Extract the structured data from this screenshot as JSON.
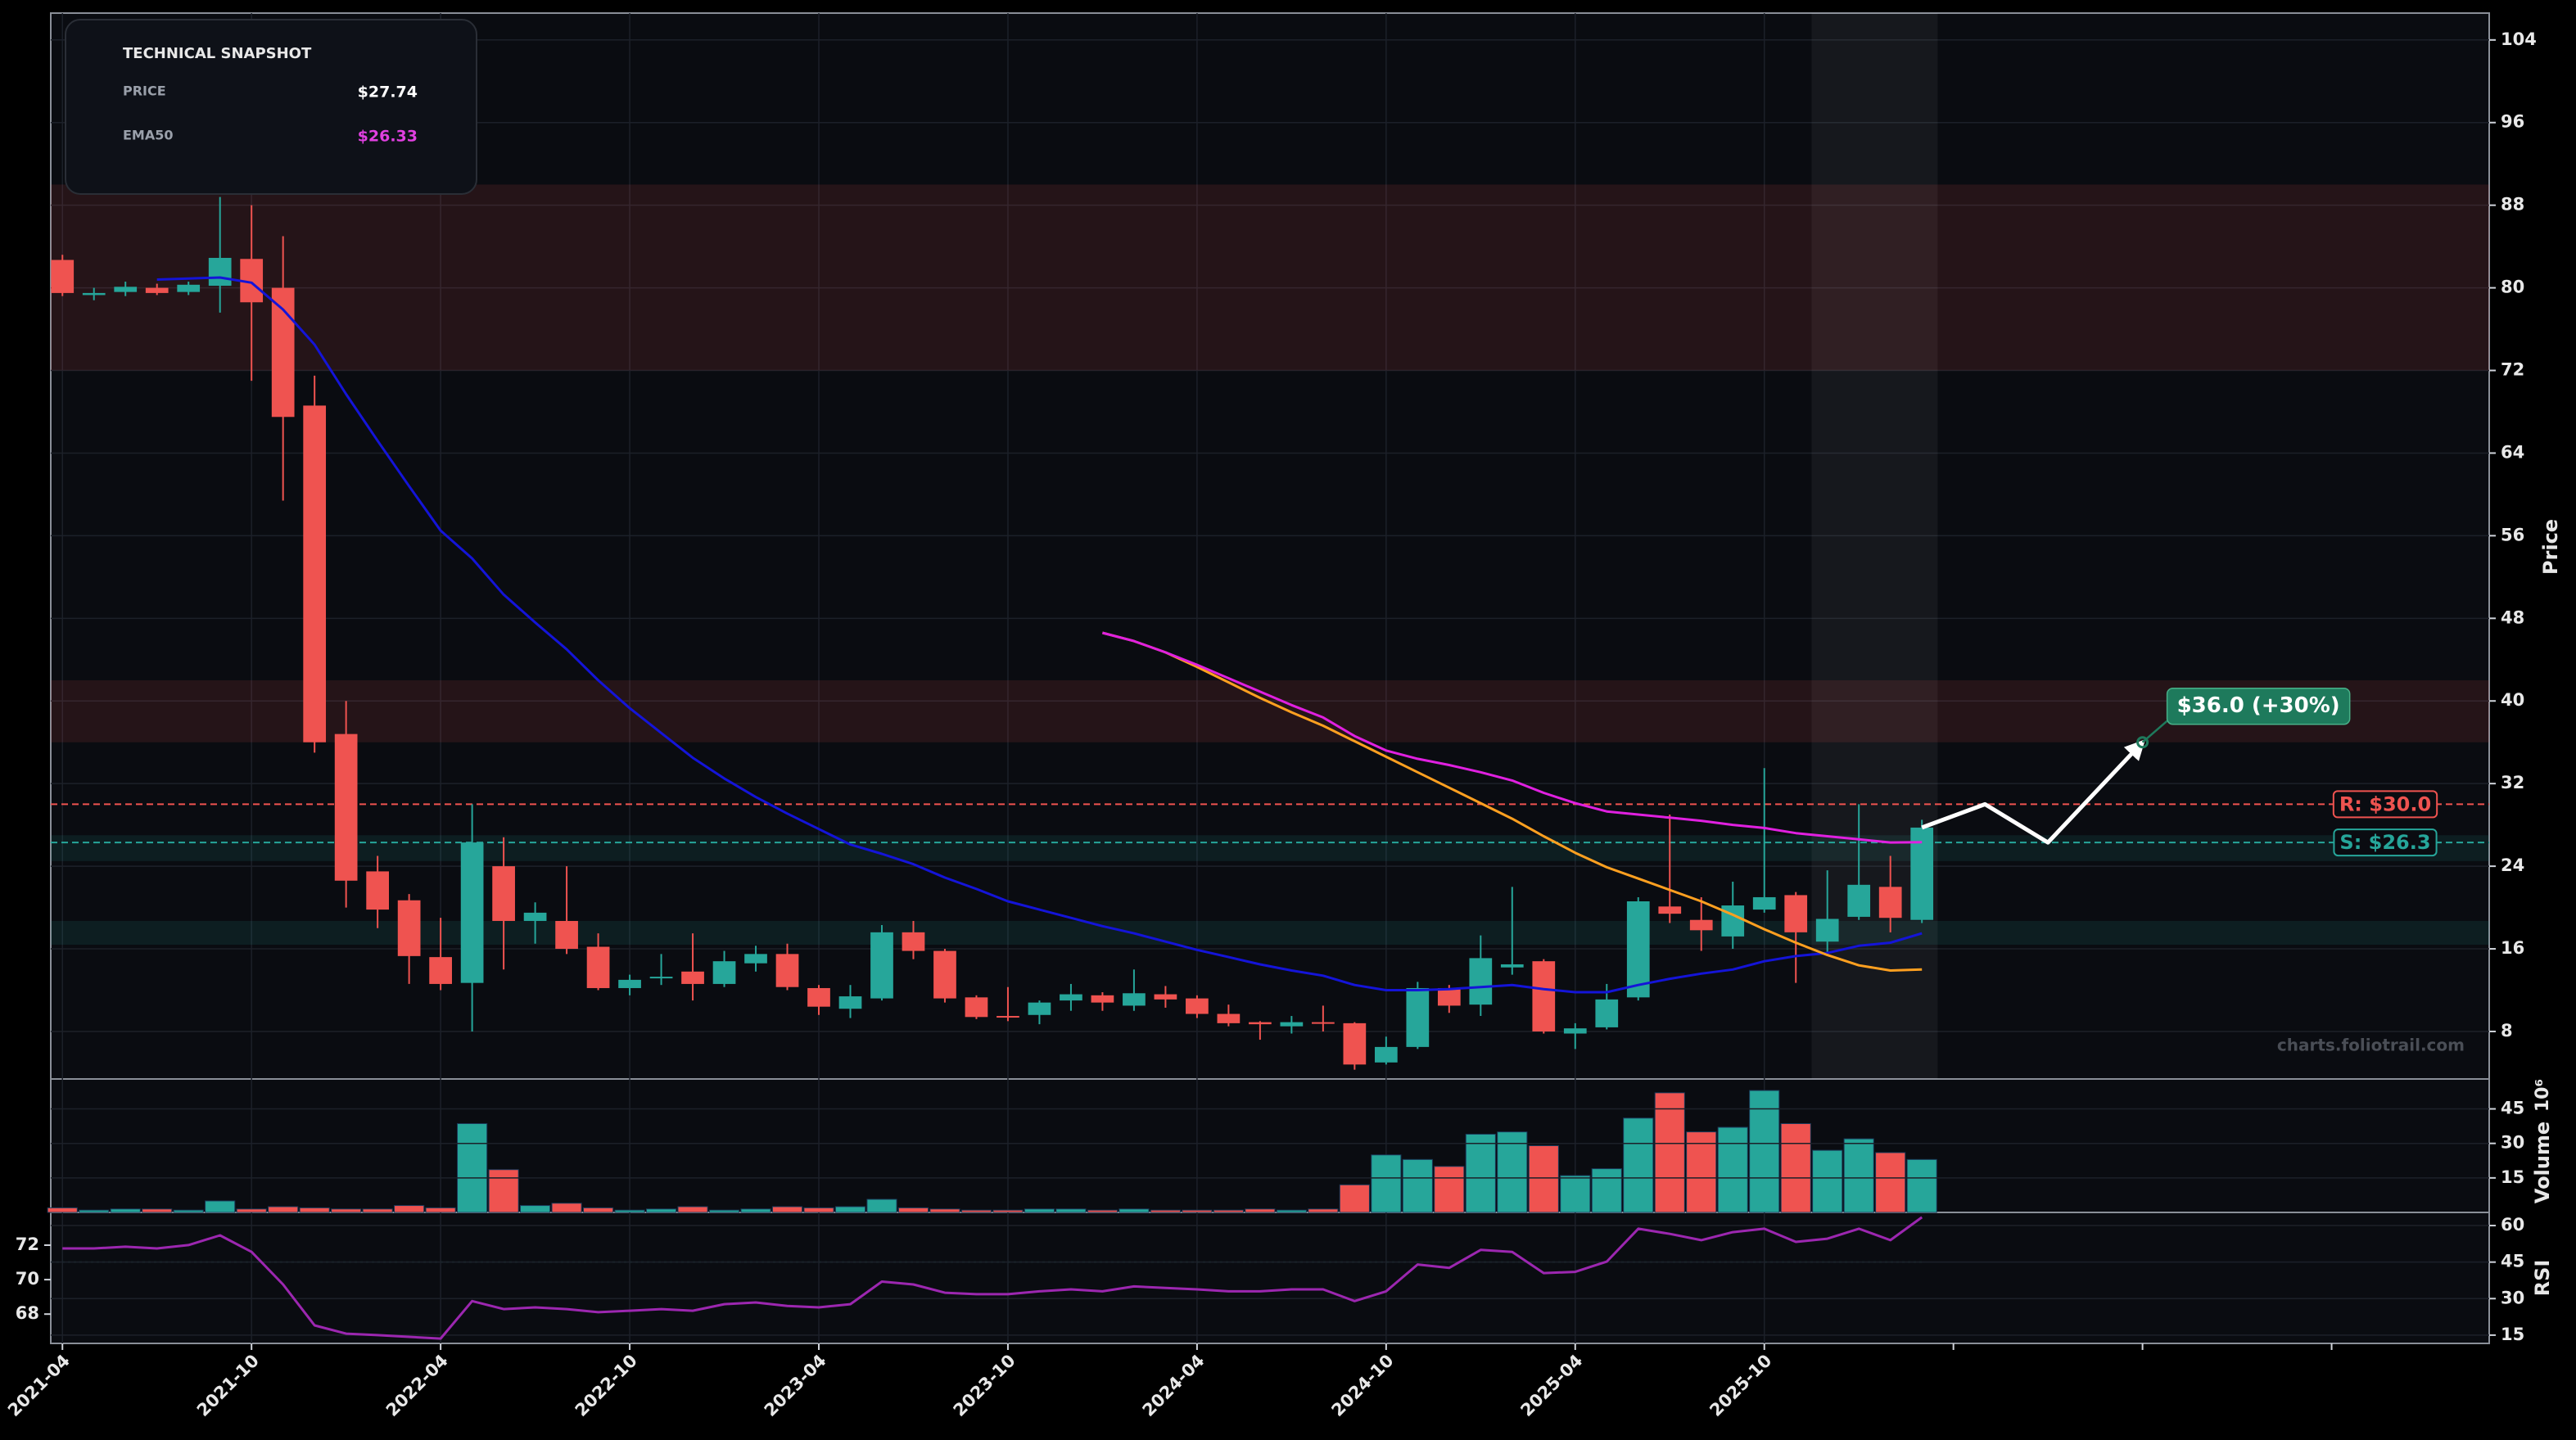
{
  "snapshot": {
    "title": "TECHNICAL SNAPSHOT",
    "rows": [
      {
        "label": "PRICE",
        "value": "$27.74",
        "color": "#ffffff"
      },
      {
        "label": "EMA50",
        "value": "$26.33",
        "color": "#e040e0"
      }
    ]
  },
  "watermark": "charts.foliotrail.com",
  "chart_data": {
    "type": "candlestick",
    "ylabel": "Price",
    "x": [
      "2021-04",
      "2021-05",
      "2021-06",
      "2021-07",
      "2021-08",
      "2021-09",
      "2021-10",
      "2021-11",
      "2021-12",
      "2022-01",
      "2022-02",
      "2022-03",
      "2022-04",
      "2022-05",
      "2022-06",
      "2022-07",
      "2022-08",
      "2022-09",
      "2022-10",
      "2022-11",
      "2022-12",
      "2023-01",
      "2023-02",
      "2023-03",
      "2023-04",
      "2023-05",
      "2023-06",
      "2023-07",
      "2023-08",
      "2023-09",
      "2023-10",
      "2023-11",
      "2023-12",
      "2024-01",
      "2024-02",
      "2024-03",
      "2024-04",
      "2024-05",
      "2024-06",
      "2024-07",
      "2024-08",
      "2024-09",
      "2024-10",
      "2024-11",
      "2024-12",
      "2025-01",
      "2025-02",
      "2025-03",
      "2025-04",
      "2025-05",
      "2025-06",
      "2025-07",
      "2025-08",
      "2025-09",
      "2025-10",
      "2025-11",
      "2025-12",
      "2026-01",
      "2026-02",
      "2026-03"
    ],
    "open": [
      82.7,
      79.3,
      79.6,
      80.0,
      79.6,
      80.2,
      82.8,
      80.0,
      68.6,
      36.8,
      23.5,
      20.7,
      15.2,
      12.7,
      24.0,
      18.7,
      18.7,
      16.2,
      12.2,
      13.2,
      13.8,
      12.6,
      14.6,
      15.5,
      12.2,
      10.2,
      11.2,
      17.6,
      15.8,
      11.3,
      9.5,
      9.6,
      11.0,
      11.5,
      10.5,
      11.6,
      11.2,
      9.7,
      8.9,
      8.5,
      8.9,
      8.8,
      5.0,
      6.5,
      12.2,
      10.6,
      14.2,
      14.8,
      7.8,
      8.4,
      11.3,
      20.1,
      18.8,
      17.2,
      19.8,
      21.2,
      16.7,
      19.1,
      22.0,
      18.8
    ],
    "high": [
      83.2,
      80.0,
      80.6,
      80.4,
      80.6,
      88.8,
      88.0,
      85.0,
      71.5,
      40.0,
      25.0,
      21.3,
      19.0,
      30.0,
      26.8,
      20.5,
      24.0,
      17.5,
      13.5,
      15.5,
      17.5,
      15.8,
      16.3,
      16.5,
      12.5,
      12.5,
      18.3,
      18.7,
      16.0,
      11.5,
      12.3,
      11.0,
      12.6,
      11.8,
      14.0,
      12.4,
      11.5,
      10.6,
      9.0,
      9.5,
      10.5,
      8.9,
      7.5,
      12.8,
      12.5,
      17.3,
      22.0,
      15.0,
      8.8,
      12.6,
      21.0,
      29.0,
      21.0,
      22.5,
      33.5,
      21.5,
      23.6,
      30.0,
      25.0,
      28.5
    ],
    "low": [
      79.2,
      78.8,
      79.2,
      79.3,
      79.3,
      77.6,
      71.0,
      59.4,
      35.0,
      20.0,
      18.0,
      12.6,
      12.0,
      8.0,
      14.0,
      16.5,
      15.5,
      12.0,
      11.5,
      12.5,
      11.0,
      12.3,
      13.8,
      12.0,
      9.6,
      9.3,
      11.0,
      15.0,
      10.8,
      9.2,
      9.0,
      8.7,
      10.0,
      10.0,
      10.0,
      10.3,
      9.3,
      8.5,
      7.2,
      7.8,
      8.0,
      4.3,
      4.8,
      6.3,
      9.8,
      9.5,
      13.5,
      7.8,
      6.3,
      8.2,
      11.0,
      18.5,
      15.8,
      16.0,
      19.5,
      12.7,
      15.6,
      18.8,
      17.6,
      18.5
    ],
    "close": [
      79.5,
      79.5,
      80.1,
      79.5,
      80.3,
      82.9,
      78.6,
      67.5,
      36.0,
      22.6,
      19.8,
      15.3,
      12.6,
      26.3,
      18.7,
      19.5,
      16.0,
      12.2,
      13.0,
      13.3,
      12.6,
      14.8,
      15.5,
      12.3,
      10.4,
      11.4,
      17.6,
      15.8,
      11.2,
      9.4,
      9.4,
      10.8,
      11.6,
      10.8,
      11.7,
      11.1,
      9.7,
      8.8,
      8.7,
      8.9,
      8.8,
      4.8,
      6.5,
      12.2,
      10.5,
      15.1,
      14.5,
      8.0,
      8.3,
      11.1,
      20.6,
      19.4,
      17.8,
      20.2,
      21.0,
      17.6,
      18.9,
      22.2,
      19.0,
      27.74
    ],
    "colors": {
      "up": "#26a69a",
      "down": "#ef5350"
    },
    "xlim": [
      "2021-04",
      "2027-09"
    ],
    "xticks": [
      "2021-04",
      "2021-10",
      "2022-04",
      "2022-10",
      "2023-04",
      "2023-10",
      "2024-04",
      "2024-10",
      "2025-04",
      "2025-10"
    ],
    "ylim": [
      3.4,
      106.6
    ],
    "yticks": [
      8,
      16,
      24,
      32,
      40,
      48,
      56,
      64,
      72,
      80,
      88,
      96,
      104
    ],
    "grid": true,
    "highlight": [
      "2025-12",
      "2026-03"
    ],
    "zones": [
      {
        "from": 72,
        "to": 90,
        "color": "#ef5350"
      },
      {
        "from": 36,
        "to": 42,
        "color": "#ef5350"
      },
      {
        "from": 24.5,
        "to": 27,
        "color": "#26a69a"
      },
      {
        "from": 16.4,
        "to": 18.7,
        "color": "#26a69a"
      }
    ],
    "levels": [
      {
        "label": "R: $30.0",
        "value": 30.0,
        "color": "#ef5350"
      },
      {
        "label": "S: $26.3",
        "value": 26.3,
        "color": "#26a69a"
      }
    ],
    "lines": [
      {
        "color": "#1414d8",
        "values": [
          null,
          null,
          null,
          80.8,
          80.9,
          81,
          80.5,
          77.9,
          74.5,
          69.7,
          65.2,
          60.8,
          56.5,
          53.8,
          50.3,
          47.6,
          45,
          42,
          39.3,
          36.9,
          34.5,
          32.5,
          30.7,
          29.1,
          27.6,
          26.1,
          25.2,
          24.2,
          22.9,
          21.8,
          20.6,
          19.8,
          19,
          18.2,
          17.5,
          16.7,
          15.9,
          15.2,
          14.5,
          13.9,
          13.4,
          12.5,
          12,
          12,
          12.1,
          12.3,
          12.5,
          12.1,
          11.8,
          11.8,
          12.5,
          13.1,
          13.6,
          14,
          14.8,
          15.3,
          15.6,
          16.3,
          16.6,
          17.5
        ]
      },
      {
        "color": "#ffa020",
        "values": [
          null,
          null,
          null,
          null,
          null,
          null,
          null,
          null,
          null,
          null,
          null,
          null,
          null,
          null,
          null,
          null,
          null,
          null,
          null,
          null,
          null,
          null,
          null,
          null,
          null,
          null,
          null,
          null,
          null,
          null,
          null,
          null,
          null,
          46.6,
          45.8,
          44.7,
          43.3,
          41.8,
          40.3,
          38.9,
          37.6,
          36.1,
          34.6,
          33.1,
          31.6,
          30.1,
          28.6,
          26.9,
          25.3,
          23.9,
          22.8,
          21.7,
          20.6,
          19.3,
          17.9,
          16.6,
          15.4,
          14.4,
          13.9,
          14.0
        ]
      },
      {
        "color": "#e020e0",
        "values": [
          null,
          null,
          null,
          null,
          null,
          null,
          null,
          null,
          null,
          null,
          null,
          null,
          null,
          null,
          null,
          null,
          null,
          null,
          null,
          null,
          null,
          null,
          null,
          null,
          null,
          null,
          null,
          null,
          null,
          null,
          null,
          null,
          null,
          46.6,
          45.8,
          44.7,
          43.5,
          42.2,
          40.9,
          39.6,
          38.4,
          36.6,
          35.2,
          34.4,
          33.8,
          33.1,
          32.3,
          31.1,
          30.1,
          29.3,
          29,
          28.7,
          28.4,
          28,
          27.7,
          27.2,
          26.9,
          26.6,
          26.3,
          26.33
        ]
      }
    ],
    "forecast": {
      "color": "#ffffff",
      "x": [
        "2026-03",
        "2026-05",
        "2026-07",
        "2026-10"
      ],
      "values": [
        27.74,
        30.0,
        26.3,
        36.0
      ]
    },
    "annotation": {
      "text": "$36.0 (+30%)",
      "x": "2026-10",
      "y": 36.0,
      "color": "#1e7a5c"
    },
    "volume": {
      "type": "bar",
      "ylabel": "Volume",
      "offset_label": "10⁶",
      "ylim": [
        0,
        58
      ],
      "yticks": [
        15,
        30,
        45
      ],
      "values": [
        2,
        1,
        1.5,
        1.5,
        1,
        5,
        1.5,
        2.5,
        2,
        1.5,
        1.5,
        3,
        2,
        38.6,
        18.6,
        3,
        4,
        2,
        1,
        1.5,
        2.5,
        1,
        1.5,
        2.5,
        2,
        2.5,
        5.7,
        2,
        1.5,
        1,
        1,
        1.5,
        1.5,
        1,
        1.5,
        1,
        1,
        1,
        1.5,
        1,
        1.5,
        12,
        25,
        23,
        20,
        34,
        35,
        29,
        16,
        19,
        41,
        52,
        35,
        37,
        53,
        38.6,
        27,
        32,
        26,
        23
      ]
    },
    "rsi": {
      "type": "line",
      "ylabel": "RSI",
      "ylim": [
        66.3,
        73.9
      ],
      "yticks": [
        68,
        70,
        72
      ],
      "y2lim": [
        11.6,
        65.4
      ],
      "y2ticks": [
        15,
        30,
        45,
        60
      ],
      "ref_lines": [
        {
          "value": 30,
          "color": "#ef5350"
        },
        {
          "value": 45,
          "color": "#26a69a"
        }
      ],
      "series": [
        {
          "axis": "y2",
          "color": "#9c27b0",
          "values": [
            50.6,
            50.6,
            51.3,
            50.6,
            52,
            56,
            49.2,
            35.8,
            19,
            15.6,
            15,
            14.3,
            13.6,
            29,
            25.7,
            26.4,
            25.7,
            24.4,
            25,
            25.7,
            25,
            27.7,
            28.4,
            27,
            26.4,
            27.7,
            37,
            35.8,
            32.4,
            31.8,
            31.8,
            33,
            33.8,
            33,
            35,
            34.4,
            33.8,
            33,
            33,
            33.8,
            33.8,
            29,
            33,
            44,
            42.6,
            50,
            49.2,
            40.5,
            41,
            45.2,
            58.7,
            56.6,
            54,
            57.3,
            58.7,
            53.3,
            54.6,
            58.7,
            54,
            63.4
          ]
        }
      ]
    }
  }
}
